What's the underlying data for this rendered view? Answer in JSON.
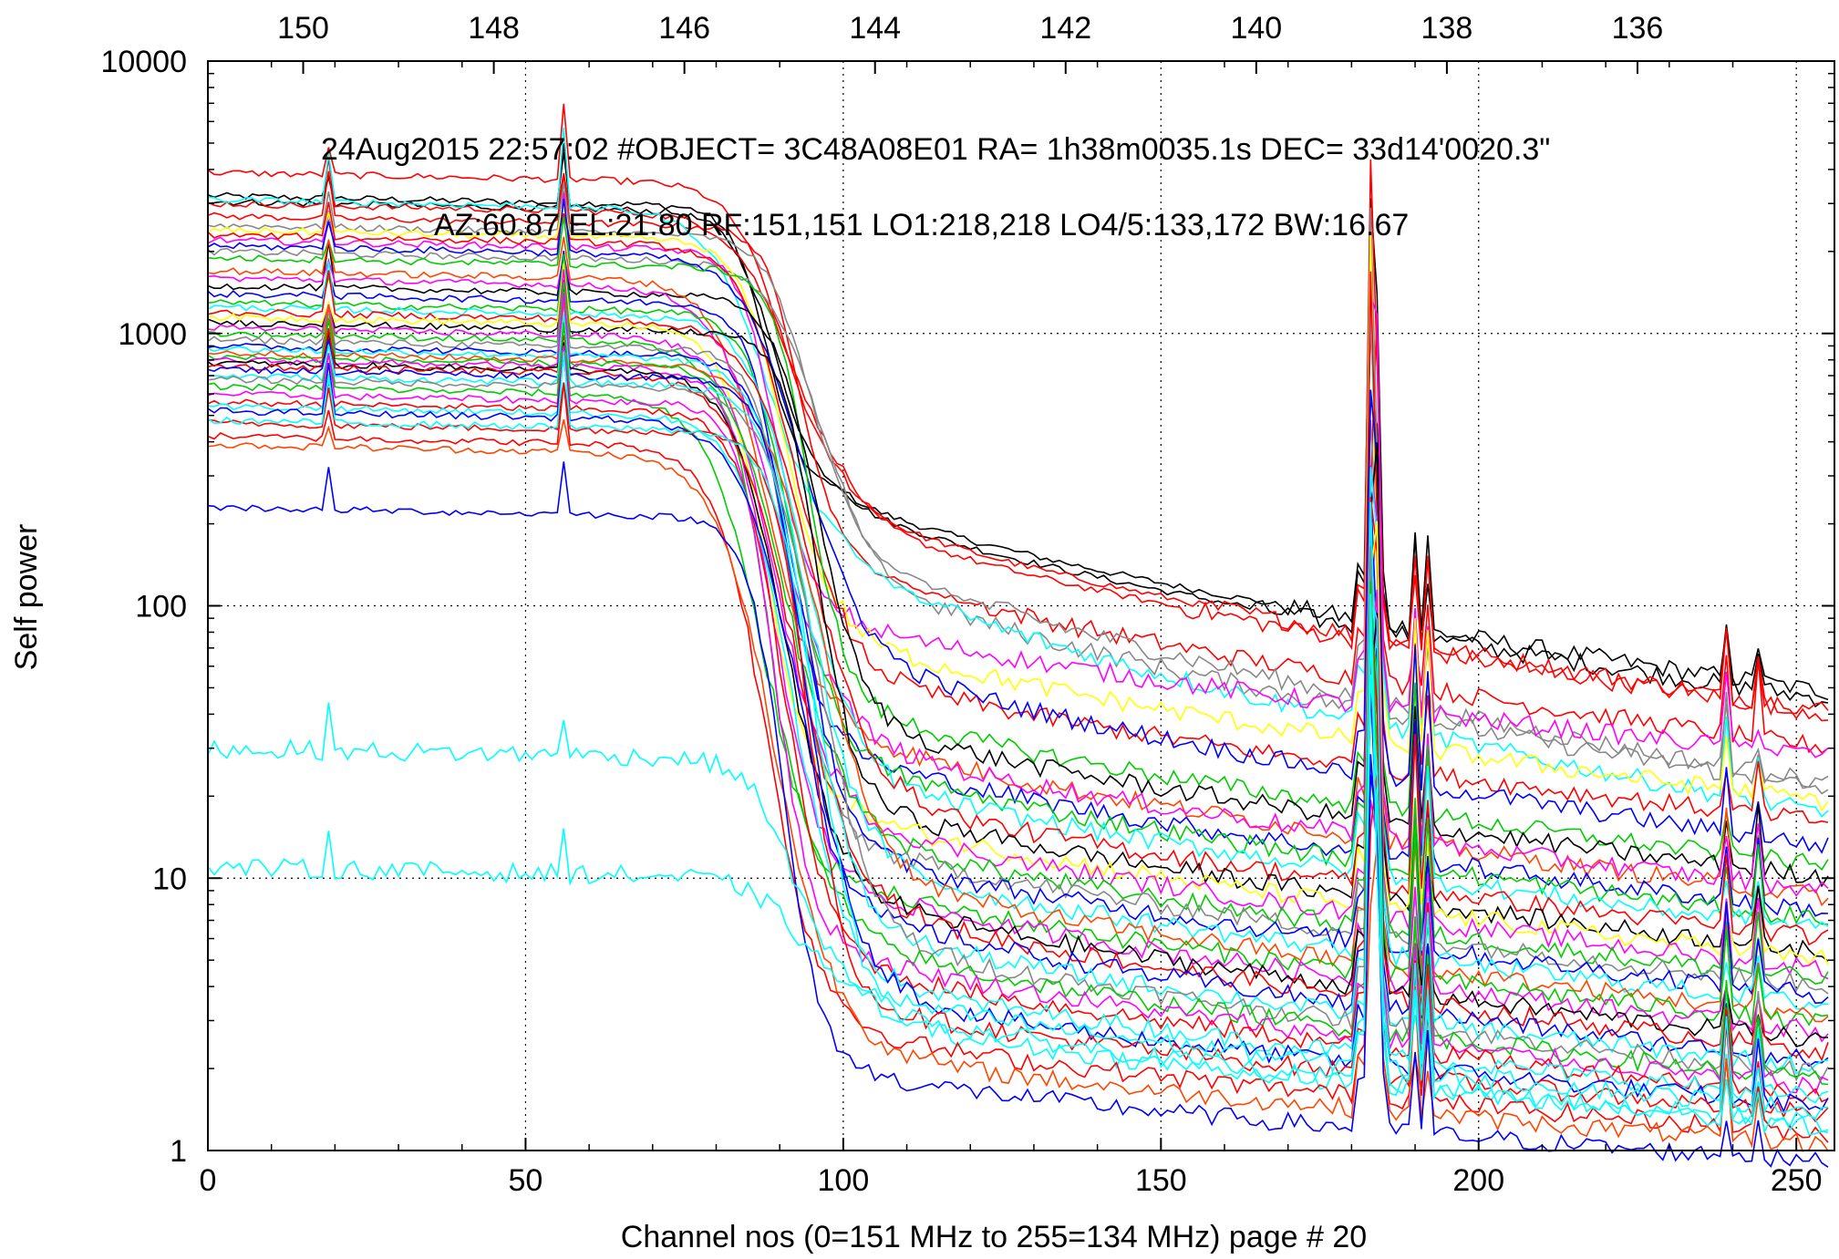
{
  "chart_data": {
    "type": "line",
    "title": "",
    "xlabel": "Channel nos (0=151 MHz to 255=134 MHz) page # 20",
    "ylabel": "Self power",
    "y_scale": "log",
    "xlim": [
      0,
      256
    ],
    "ylim": [
      1,
      10000
    ],
    "grid": true,
    "x_ticks": [
      "0",
      "50",
      "100",
      "150",
      "200",
      "250"
    ],
    "x_tick_values": [
      0,
      50,
      100,
      150,
      200,
      250
    ],
    "y_ticks": [
      "1",
      "10",
      "100",
      "1000",
      "10000"
    ],
    "y_tick_values": [
      1,
      10,
      100,
      1000,
      10000
    ],
    "top_axis": {
      "label": "",
      "ticks": [
        "150",
        "148",
        "146",
        "144",
        "142",
        "140",
        "138",
        "136"
      ],
      "tick_values_mhz": [
        150,
        148,
        146,
        144,
        142,
        140,
        138,
        136
      ],
      "mapping": "channel = (151 - MHz) * 255 / 17"
    },
    "annotations": [
      "24Aug2015 22:57:02  #OBJECT= 3C48A08E01 RA=   1h38m0035.1s DEC=  33d14'0020.3\"",
      "AZ:60.87  EL:21.80  RF:151,151    LO1:218,218    LO4/5:133,172    BW:16.67"
    ],
    "line_colors": [
      "#ff0000",
      "#000000",
      "#00cc00",
      "#0000ff",
      "#ff00ff",
      "#00ffff",
      "#ffff00",
      "#888888",
      "#ff4500"
    ],
    "series_profiles": [
      {
        "color": "#000000",
        "passband": 3200,
        "tail_start": 260,
        "tail_end": 48
      },
      {
        "color": "#000000",
        "passband": 3050,
        "tail_start": 245,
        "tail_end": 45
      },
      {
        "color": "#ff0000",
        "passband": 3900,
        "tail_start": 240,
        "tail_end": 41
      },
      {
        "color": "#ff0000",
        "passband": 3000,
        "tail_start": 220,
        "tail_end": 40
      },
      {
        "color": "#ff0000",
        "passband": 2700,
        "tail_start": 150,
        "tail_end": 30
      },
      {
        "color": "#888888",
        "passband": 2500,
        "tail_start": 170,
        "tail_end": 22
      },
      {
        "color": "#888888",
        "passband": 2000,
        "tail_start": 140,
        "tail_end": 21
      },
      {
        "color": "#00ffff",
        "passband": 3100,
        "tail_start": 150,
        "tail_end": 17
      },
      {
        "color": "#ff00ff",
        "passband": 2200,
        "tail_start": 90,
        "tail_end": 28
      },
      {
        "color": "#ffff00",
        "passband": 2400,
        "tail_start": 80,
        "tail_end": 19
      },
      {
        "color": "#ff0000",
        "passband": 2300,
        "tail_start": 60,
        "tail_end": 16
      },
      {
        "color": "#0000ff",
        "passband": 2100,
        "tail_start": 70,
        "tail_end": 13
      },
      {
        "color": "#00cc00",
        "passband": 1900,
        "tail_start": 45,
        "tail_end": 11
      },
      {
        "color": "#000000",
        "passband": 1500,
        "tail_start": 40,
        "tail_end": 10
      },
      {
        "color": "#ff4500",
        "passband": 1700,
        "tail_start": 35,
        "tail_end": 8.5
      },
      {
        "color": "#ff00ff",
        "passband": 1600,
        "tail_start": 33,
        "tail_end": 9
      },
      {
        "color": "#0000ff",
        "passband": 1400,
        "tail_start": 30,
        "tail_end": 7.5
      },
      {
        "color": "#00cc00",
        "passband": 1300,
        "tail_start": 28,
        "tail_end": 7
      },
      {
        "color": "#00ffff",
        "passband": 1250,
        "tail_start": 25,
        "tail_end": 6.5
      },
      {
        "color": "#ff0000",
        "passband": 1200,
        "tail_start": 22,
        "tail_end": 6
      },
      {
        "color": "#000000",
        "passband": 1100,
        "tail_start": 20,
        "tail_end": 5.3
      },
      {
        "color": "#ffff00",
        "passband": 1150,
        "tail_start": 18,
        "tail_end": 5
      },
      {
        "color": "#ff00ff",
        "passband": 1050,
        "tail_start": 17,
        "tail_end": 4.6
      },
      {
        "color": "#00cc00",
        "passband": 1000,
        "tail_start": 15,
        "tail_end": 4.2
      },
      {
        "color": "#888888",
        "passband": 950,
        "tail_start": 14,
        "tail_end": 4
      },
      {
        "color": "#0000ff",
        "passband": 900,
        "tail_start": 13,
        "tail_end": 3.7
      },
      {
        "color": "#00ffff",
        "passband": 880,
        "tail_start": 12,
        "tail_end": 3.4
      },
      {
        "color": "#ff4500",
        "passband": 850,
        "tail_start": 11,
        "tail_end": 3.1
      },
      {
        "color": "#00cc00",
        "passband": 820,
        "tail_start": 10,
        "tail_end": 2.9
      },
      {
        "color": "#ff00ff",
        "passband": 800,
        "tail_start": 9.5,
        "tail_end": 2.7
      },
      {
        "color": "#000000",
        "passband": 780,
        "tail_start": 9,
        "tail_end": 2.5
      },
      {
        "color": "#ff0000",
        "passband": 760,
        "tail_start": 8.5,
        "tail_end": 2.3
      },
      {
        "color": "#0000ff",
        "passband": 740,
        "tail_start": 8,
        "tail_end": 2.1
      },
      {
        "color": "#00ffff",
        "passband": 700,
        "tail_start": 7,
        "tail_end": 2.0
      },
      {
        "color": "#888888",
        "passband": 680,
        "tail_start": 6.5,
        "tail_end": 1.9
      },
      {
        "color": "#00cc00",
        "passband": 640,
        "tail_start": 6,
        "tail_end": 1.8
      },
      {
        "color": "#ff00ff",
        "passband": 600,
        "tail_start": 5.5,
        "tail_end": 1.7
      },
      {
        "color": "#ff0000",
        "passband": 560,
        "tail_start": 5,
        "tail_end": 1.6
      },
      {
        "color": "#00ffff",
        "passband": 540,
        "tail_start": 4.5,
        "tail_end": 1.55
      },
      {
        "color": "#0000ff",
        "passband": 520,
        "tail_start": 4,
        "tail_end": 1.45
      },
      {
        "color": "#ff0000",
        "passband": 470,
        "tail_start": 3.6,
        "tail_end": 1.35
      },
      {
        "color": "#00ffff",
        "passband": 480,
        "tail_start": 3.2,
        "tail_end": 1.25
      },
      {
        "color": "#ff0000",
        "passband": 420,
        "tail_start": 2.8,
        "tail_end": 1.15
      },
      {
        "color": "#ff4500",
        "passband": 390,
        "tail_start": 2.4,
        "tail_end": 1.05
      },
      {
        "color": "#0000ff",
        "passband": 230,
        "tail_start": 2.0,
        "tail_end": 0.9
      },
      {
        "color": "#00ffff",
        "passband": 30,
        "tail_start": 4.0,
        "tail_end": 1.4
      },
      {
        "color": "#00ffff",
        "passband": 11,
        "tail_start": 3.6,
        "tail_end": 1.2
      }
    ]
  }
}
